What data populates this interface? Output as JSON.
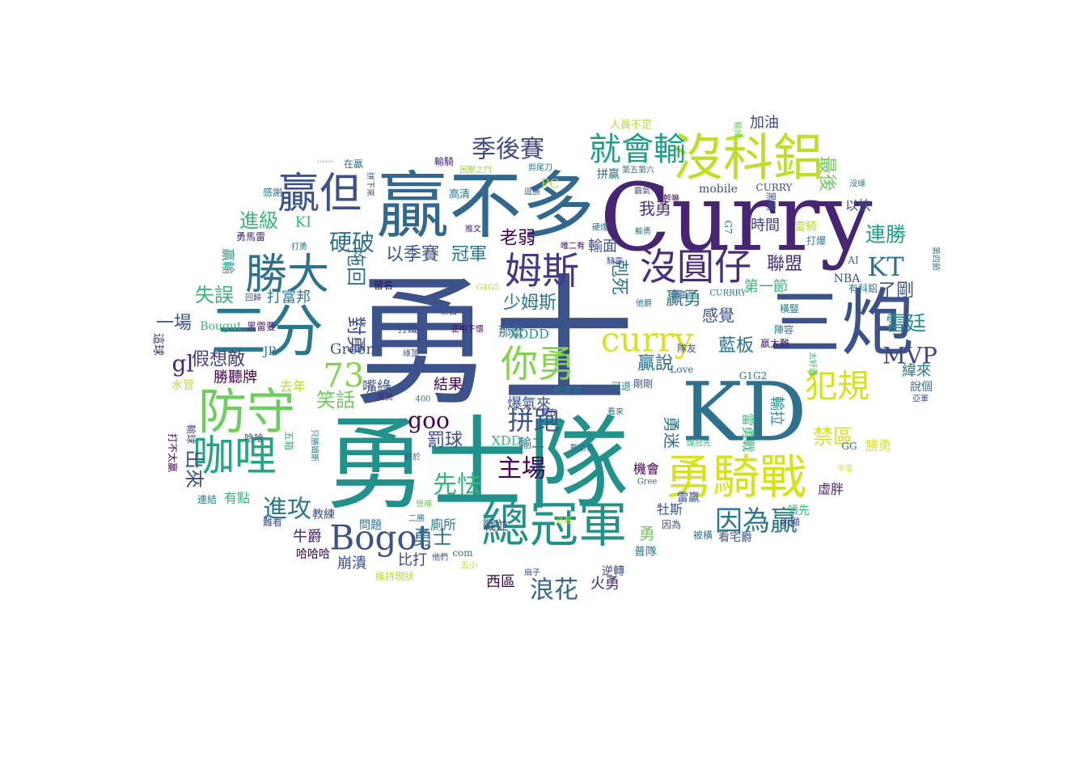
{
  "words": [
    {
      "text": "勇士",
      "color": "#3b528b",
      "vertical": false
    },
    {
      "text": "勇士隊",
      "color": "#21918c",
      "vertical": false
    },
    {
      "text": "Curry",
      "color": "#482475",
      "vertical": false
    },
    {
      "text": "KD",
      "color": "#2c728e",
      "vertical": false
    },
    {
      "text": "三炮",
      "color": "#3b528b",
      "vertical": false
    },
    {
      "text": "贏不多",
      "color": "#31688e",
      "vertical": false
    },
    {
      "text": "三分",
      "color": "#2a788e",
      "vertical": false
    },
    {
      "text": "沒科鋁",
      "color": "#bddf26",
      "vertical": false
    },
    {
      "text": "總冠軍",
      "color": "#21918c",
      "vertical": false
    },
    {
      "text": "勇騎戰",
      "color": "#d8e219",
      "vertical": false
    },
    {
      "text": "防守",
      "color": "#6ccd5a",
      "vertical": false
    },
    {
      "text": "咖哩",
      "color": "#22a785",
      "vertical": false
    },
    {
      "text": "勝大",
      "color": "#2c728e",
      "vertical": false
    },
    {
      "text": "贏但",
      "color": "#3b528b",
      "vertical": false
    },
    {
      "text": "姆斯",
      "color": "#443983",
      "vertical": false
    },
    {
      "text": "沒圓仔",
      "color": "#472d7b",
      "vertical": false
    },
    {
      "text": "curry",
      "color": "#d8e219",
      "vertical": false
    },
    {
      "text": "你勇",
      "color": "#84d44b",
      "vertical": false
    },
    {
      "text": "犯規",
      "color": "#d8e219",
      "vertical": false
    },
    {
      "text": "就會輸",
      "color": "#1f9e89",
      "vertical": false
    },
    {
      "text": "Bogot",
      "color": "#3b528b",
      "vertical": false
    },
    {
      "text": "KT",
      "color": "#2c728e",
      "vertical": false
    },
    {
      "text": "季後賽",
      "color": "#3e4a89",
      "vertical": false
    },
    {
      "text": "因為贏",
      "color": "#2a788e",
      "vertical": false
    },
    {
      "text": "拼跑",
      "color": "#3b528b",
      "vertical": false
    },
    {
      "text": "主場",
      "color": "#440154",
      "vertical": false
    },
    {
      "text": "先怯",
      "color": "#35b779",
      "vertical": false
    },
    {
      "text": "進攻",
      "color": "#2a788e",
      "vertical": false
    },
    {
      "text": "浪花",
      "color": "#31688e",
      "vertical": false
    },
    {
      "text": "MVP",
      "color": "#404688",
      "vertical": false
    },
    {
      "text": "73",
      "color": "#84d44b",
      "vertical": false
    },
    {
      "text": "硬破",
      "color": "#2c728e",
      "vertical": false
    },
    {
      "text": "連勝",
      "color": "#1f9e89",
      "vertical": false
    },
    {
      "text": "雷廷",
      "color": "#21918c",
      "vertical": false
    },
    {
      "text": "禁區",
      "color": "#d8e219",
      "vertical": false
    },
    {
      "text": "最後",
      "color": "#6ccd5a",
      "vertical": true
    },
    {
      "text": "進級",
      "color": "#35b779",
      "vertical": false
    },
    {
      "text": "對勇",
      "color": "#3e4a89",
      "vertical": true
    },
    {
      "text": "拖回",
      "color": "#2c728e",
      "vertical": true
    },
    {
      "text": "以季賽",
      "color": "#3b528b",
      "vertical": false
    },
    {
      "text": "冠軍",
      "color": "#2a788e",
      "vertical": false
    },
    {
      "text": "老弱",
      "color": "#440154",
      "vertical": false
    },
    {
      "text": "少姆斯",
      "color": "#2a788e",
      "vertical": false
    },
    {
      "text": "goo",
      "color": "#440154",
      "vertical": false
    },
    {
      "text": "罰球",
      "color": "#3e4a89",
      "vertical": false
    },
    {
      "text": "笑話",
      "color": "#6ccd5a",
      "vertical": false
    },
    {
      "text": "出來",
      "color": "#3b528b",
      "vertical": true
    },
    {
      "text": "失誤",
      "color": "#35b779",
      "vertical": false
    },
    {
      "text": "一場",
      "color": "#3b528b",
      "vertical": false
    },
    {
      "text": "gl",
      "color": "#482475",
      "vertical": false
    },
    {
      "text": "假想敵",
      "color": "#433e85",
      "vertical": false
    },
    {
      "text": "勇士",
      "color": "#2c728e",
      "vertical": false
    },
    {
      "text": "聯盟",
      "color": "#472d7b",
      "vertical": false
    },
    {
      "text": "了剛",
      "color": "#3b528b",
      "vertical": false
    },
    {
      "text": "贏勇",
      "color": "#2a788e",
      "vertical": false
    },
    {
      "text": "藍板",
      "color": "#2c728e",
      "vertical": false
    },
    {
      "text": "感覺",
      "color": "#3b528b",
      "vertical": false
    },
    {
      "text": "贏說",
      "color": "#31688e",
      "vertical": false
    },
    {
      "text": "我勇",
      "color": "#472d7b",
      "vertical": false
    },
    {
      "text": "輸面",
      "color": "#3b528b",
      "vertical": false
    },
    {
      "text": "時間",
      "color": "#433e85",
      "vertical": false
    },
    {
      "text": "以快",
      "color": "#3b528b",
      "vertical": false
    },
    {
      "text": "加油",
      "color": "#3e4a89",
      "vertical": false
    },
    {
      "text": "人員不足",
      "color": "#b5de2b",
      "vertical": false
    },
    {
      "text": "拼贏",
      "color": "#2c728e",
      "vertical": false
    },
    {
      "text": "PC",
      "color": "#b5de2b",
      "vertical": false
    },
    {
      "text": "mobile",
      "color": "#3b528b",
      "vertical": false
    },
    {
      "text": "CURRY",
      "color": "#3e4a89",
      "vertical": false
    },
    {
      "text": "高清",
      "color": "#2c728e",
      "vertical": false
    },
    {
      "text": "輸騎",
      "color": "#482475",
      "vertical": false
    },
    {
      "text": "困獸之鬥",
      "color": "#a0da39",
      "vertical": false
    },
    {
      "text": "剪尾刀",
      "color": "#2c728e",
      "vertical": false
    },
    {
      "text": "感謝",
      "color": "#2a788e",
      "vertical": false
    },
    {
      "text": "在贏",
      "color": "#2c728e",
      "vertical": false
    },
    {
      "text": "……",
      "color": "#3b528b",
      "vertical": false
    },
    {
      "text": "拼下來",
      "color": "#3b528b",
      "vertical": true
    },
    {
      "text": "KI",
      "color": "#35b779",
      "vertical": false
    },
    {
      "text": "贏輸",
      "color": "#1f9e89",
      "vertical": true
    },
    {
      "text": "打富邦",
      "color": "#2a788e",
      "vertical": false
    },
    {
      "text": "Bougut",
      "color": "#35b779",
      "vertical": false
    },
    {
      "text": "黑雷要",
      "color": "#482475",
      "vertical": false
    },
    {
      "text": "Green",
      "color": "#3b528b",
      "vertical": false
    },
    {
      "text": "勝聽牌",
      "color": "#440154",
      "vertical": false
    },
    {
      "text": "去年",
      "color": "#b5de2b",
      "vertical": false
    },
    {
      "text": "JR",
      "color": "#2a788e",
      "vertical": false
    },
    {
      "text": "嘴綠",
      "color": "#3b528b",
      "vertical": false
    },
    {
      "text": "結果",
      "color": "#440154",
      "vertical": false
    },
    {
      "text": "爆氣來",
      "color": "#3b528b",
      "vertical": false
    },
    {
      "text": "XDDD",
      "color": "#1f9e89",
      "vertical": false
    },
    {
      "text": "那麼",
      "color": "#2c728e",
      "vertical": false
    },
    {
      "text": "剋死",
      "color": "#2a788e",
      "vertical": true
    },
    {
      "text": "第一節",
      "color": "#35b779",
      "vertical": false
    },
    {
      "text": "隊友",
      "color": "#3b528b",
      "vertical": false
    },
    {
      "text": "贏太難",
      "color": "#482475",
      "vertical": false
    },
    {
      "text": "緯來",
      "color": "#2a788e",
      "vertical": false
    },
    {
      "text": "NBA",
      "color": "#3b528b",
      "vertical": false
    },
    {
      "text": "陣容",
      "color": "#2c728e",
      "vertical": false
    },
    {
      "text": "橫豎",
      "color": "#2a788e",
      "vertical": false
    },
    {
      "text": "雷騎",
      "color": "#b5de2b",
      "vertical": false
    },
    {
      "text": "打爆",
      "color": "#2a788e",
      "vertical": false
    },
    {
      "text": "AI",
      "color": "#2c728e",
      "vertical": false
    },
    {
      "text": "有科鋁",
      "color": "#2c728e",
      "vertical": false
    },
    {
      "text": "G1G2",
      "color": "#2a788e",
      "vertical": false
    },
    {
      "text": "Love",
      "color": "#2c728e",
      "vertical": false
    },
    {
      "text": "可退",
      "color": "#2a788e",
      "vertical": false
    },
    {
      "text": "剛剛",
      "color": "#3b528b",
      "vertical": false
    },
    {
      "text": "勇迷",
      "color": "#2c728e",
      "vertical": true
    },
    {
      "text": "輸拉",
      "color": "#21918c",
      "vertical": true
    },
    {
      "text": "雷勇戰",
      "color": "#35b779",
      "vertical": true
    },
    {
      "text": "勝勇",
      "color": "#d8e219",
      "vertical": false
    },
    {
      "text": "GG",
      "color": "#2a788e",
      "vertical": false
    },
    {
      "text": "說個",
      "color": "#2c728e",
      "vertical": false
    },
    {
      "text": "戰都會",
      "color": "#2c728e",
      "vertical": false
    },
    {
      "text": "XDD",
      "color": "#35b779",
      "vertical": false
    },
    {
      "text": "輸二",
      "color": "#2a788e",
      "vertical": false
    },
    {
      "text": "機會",
      "color": "#440154",
      "vertical": false
    },
    {
      "text": "牡斯",
      "color": "#3b528b",
      "vertical": false
    },
    {
      "text": "領先",
      "color": "#35b779",
      "vertical": false
    },
    {
      "text": "虛胖",
      "color": "#482475",
      "vertical": false
    },
    {
      "text": "有點",
      "color": "#35b779",
      "vertical": false
    },
    {
      "text": "教練",
      "color": "#3e4a89",
      "vertical": false
    },
    {
      "text": "問題",
      "color": "#2c728e",
      "vertical": false
    },
    {
      "text": "廁所",
      "color": "#2a788e",
      "vertical": false
    },
    {
      "text": "戰並",
      "color": "#3b528b",
      "vertical": false
    },
    {
      "text": "勇",
      "color": "#6ccd5a",
      "vertical": false
    },
    {
      "text": "看宅爵",
      "color": "#3b528b",
      "vertical": false
    },
    {
      "text": "牛爵",
      "color": "#482475",
      "vertical": false
    },
    {
      "text": "崩潰",
      "color": "#3b528b",
      "vertical": false
    },
    {
      "text": "比打",
      "color": "#3e4a89",
      "vertical": false
    },
    {
      "text": "西區",
      "color": "#440154",
      "vertical": false
    },
    {
      "text": "火勇",
      "color": "#482475",
      "vertical": false
    },
    {
      "text": "普隊",
      "color": "#2a788e",
      "vertical": false
    },
    {
      "text": "逆轉",
      "color": "#3b528b",
      "vertical": false
    },
    {
      "text": "哈哈哈",
      "color": "#440154",
      "vertical": false
    },
    {
      "text": "com",
      "color": "#2a788e",
      "vertical": false
    },
    {
      "text": "維持現狀",
      "color": "#b5de2b",
      "vertical": false
    },
    {
      "text": "明顯",
      "color": "#3b528b",
      "vertical": false
    },
    {
      "text": "因為",
      "color": "#3b528b",
      "vertical": false
    },
    {
      "text": "被橫",
      "color": "#2a788e",
      "vertical": false
    },
    {
      "text": "雷贏",
      "color": "#3b528b",
      "vertical": false
    },
    {
      "text": "這球",
      "color": "#482475",
      "vertical": true
    },
    {
      "text": "水管",
      "color": "#b5de2b",
      "vertical": false
    },
    {
      "text": "輸球",
      "color": "#3e4a89",
      "vertical": true
    },
    {
      "text": "打不太贏",
      "color": "#440154",
      "vertical": true
    },
    {
      "text": "連結",
      "color": "#2a788e",
      "vertical": false
    },
    {
      "text": "難看",
      "color": "#3b528b",
      "vertical": false
    },
    {
      "text": "哈哈",
      "color": "#3b528b",
      "vertical": false
    },
    {
      "text": "五箱",
      "color": "#35b779",
      "vertical": true
    },
    {
      "text": "只勝姆斯",
      "color": "#2a788e",
      "vertical": true
    },
    {
      "text": "勇馬雷",
      "color": "#482475",
      "vertical": false
    },
    {
      "text": "打勇",
      "color": "#2a788e",
      "vertical": false
    },
    {
      "text": "回歸",
      "color": "#3b528b",
      "vertical": false
    },
    {
      "text": "留名",
      "color": "#440154",
      "vertical": false
    },
    {
      "text": "G4G5",
      "color": "#b5de2b",
      "vertical": false
    },
    {
      "text": "勝面",
      "color": "#3b528b",
      "vertical": false
    },
    {
      "text": "打鐵",
      "color": "#3e4a89",
      "vertical": false
    },
    {
      "text": "正中下懷",
      "color": "#440154",
      "vertical": false
    },
    {
      "text": "綠頂",
      "color": "#3b528b",
      "vertical": false
    },
    {
      "text": "哭哭",
      "color": "#482475",
      "vertical": false
    },
    {
      "text": "400",
      "color": "#2c728e",
      "vertical": false
    },
    {
      "text": "終於",
      "color": "#3b528b",
      "vertical": false
    },
    {
      "text": "營補",
      "color": "#6ccd5a",
      "vertical": false
    },
    {
      "text": "二勝",
      "color": "#2a788e",
      "vertical": false
    },
    {
      "text": "他們",
      "color": "#3b528b",
      "vertical": false
    },
    {
      "text": "五小",
      "color": "#b5de2b",
      "vertical": false
    },
    {
      "text": "扇子",
      "color": "#3b528b",
      "vertical": false
    },
    {
      "text": "必看",
      "color": "#b5de2b",
      "vertical": false
    },
    {
      "text": "看來",
      "color": "#2a788e",
      "vertical": false
    },
    {
      "text": "還在",
      "color": "#3b528b",
      "vertical": false
    },
    {
      "text": "戰勝勇",
      "color": "#2a788e",
      "vertical": false
    },
    {
      "text": "推文",
      "color": "#482475",
      "vertical": false
    },
    {
      "text": "爆冠先",
      "color": "#35b779",
      "vertical": false
    },
    {
      "text": "他爵",
      "color": "#2c728e",
      "vertical": false
    },
    {
      "text": "第五第六",
      "color": "#2a788e",
      "vertical": false
    },
    {
      "text": "霸氣",
      "color": "#3b528b",
      "vertical": false
    },
    {
      "text": "幹嘛",
      "color": "#440154",
      "vertical": false
    },
    {
      "text": "沒綠",
      "color": "#2a788e",
      "vertical": false
    },
    {
      "text": "騎雷",
      "color": "#3b528b",
      "vertical": false
    },
    {
      "text": "硬爆",
      "color": "#2c728e",
      "vertical": false
    },
    {
      "text": "輸勇",
      "color": "#2a788e",
      "vertical": false
    },
    {
      "text": "唯二有",
      "color": "#440154",
      "vertical": false
    },
    {
      "text": "第四節",
      "color": "#2a788e",
      "vertical": true
    },
    {
      "text": "太好過",
      "color": "#35b779",
      "vertical": true
    },
    {
      "text": "亞軍",
      "color": "#3b528b",
      "vertical": false
    },
    {
      "text": "半圭",
      "color": "#d8e219",
      "vertical": false
    },
    {
      "text": "G7",
      "color": "#2a788e",
      "vertical": true
    },
    {
      "text": "黑鳴",
      "color": "#3b528b",
      "vertical": true
    },
    {
      "text": "CURRRY",
      "color": "#2c728e",
      "vertical": false
    },
    {
      "text": "Gree",
      "color": "#2a788e",
      "vertical": false
    },
    {
      "text": "逗勝",
      "color": "#3b528b",
      "vertical": false
    },
    {
      "text": "輸掉",
      "color": "#6ccd5a",
      "vertical": true
    },
    {
      "text": "贏雷",
      "color": "#3b528b",
      "vertical": false
    }
  ]
}
